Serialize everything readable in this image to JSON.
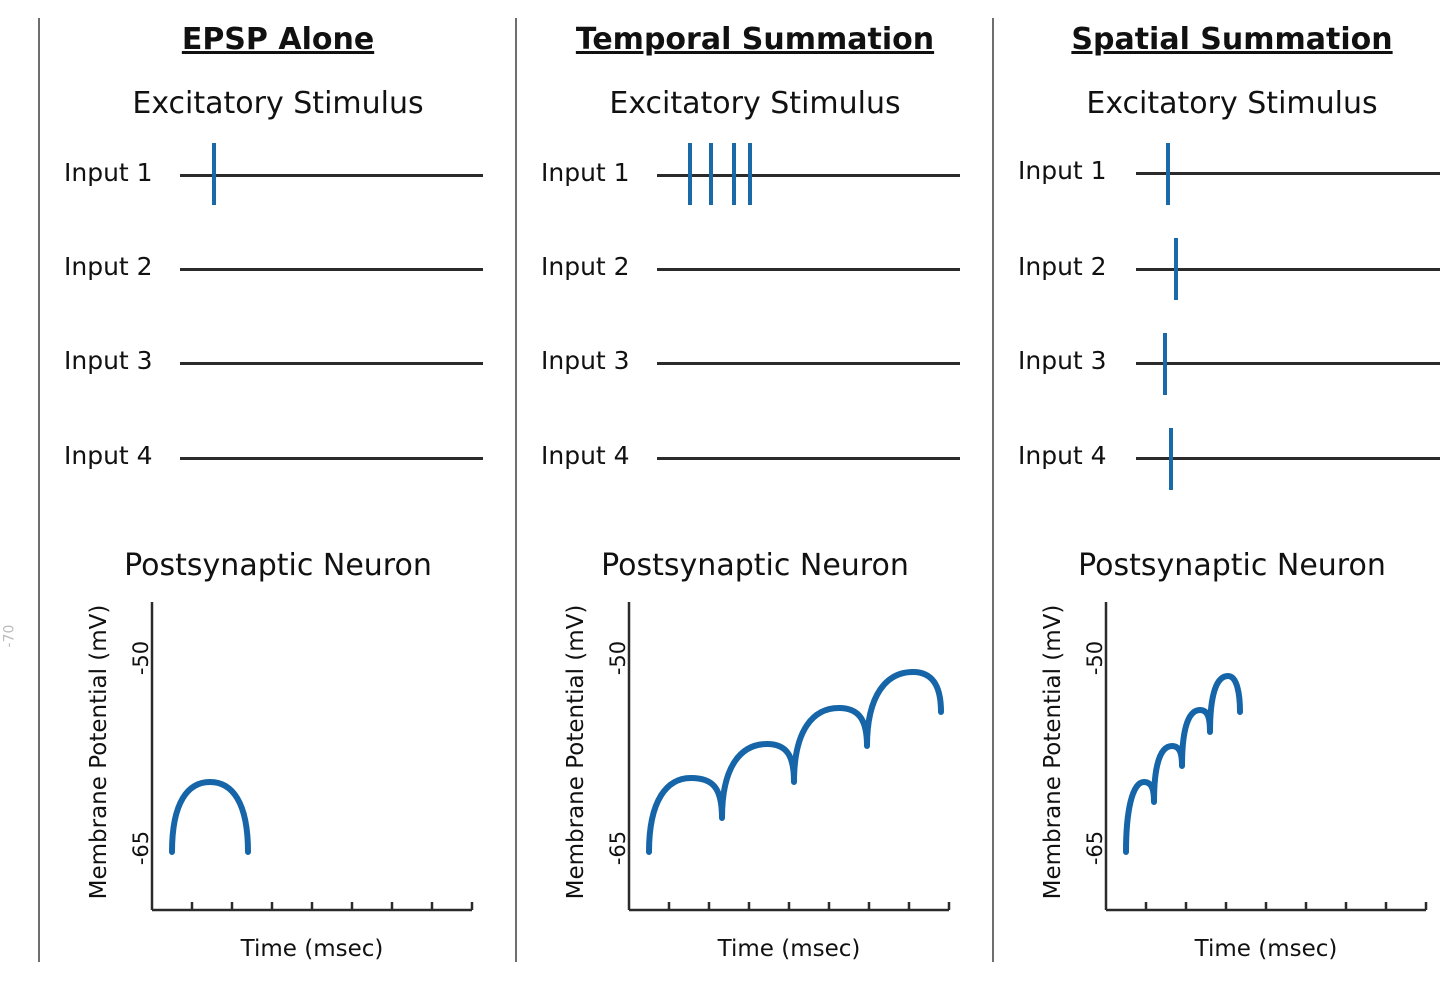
{
  "panels": [
    {
      "title": "EPSP Alone",
      "stimulus_title": "Excitatory Stimulus",
      "inputs": [
        {
          "label": "Input 1",
          "stimulus_count": 1
        },
        {
          "label": "Input 2",
          "stimulus_count": 0
        },
        {
          "label": "Input 3",
          "stimulus_count": 0
        },
        {
          "label": "Input 4",
          "stimulus_count": 0
        }
      ],
      "neuron_title": "Postsynaptic Neuron",
      "y_label": "Membrane Potential (mV)",
      "y_ticks": [
        "-50",
        "-65"
      ],
      "x_label": "Time (msec)"
    },
    {
      "title": "Temporal Summation",
      "stimulus_title": "Excitatory Stimulus",
      "inputs": [
        {
          "label": "Input 1",
          "stimulus_count": 4
        },
        {
          "label": "Input 2",
          "stimulus_count": 0
        },
        {
          "label": "Input 3",
          "stimulus_count": 0
        },
        {
          "label": "Input 4",
          "stimulus_count": 0
        }
      ],
      "neuron_title": "Postsynaptic Neuron",
      "y_label": "Membrane Potential (mV)",
      "y_ticks": [
        "-50",
        "-65"
      ],
      "x_label": "Time (msec)"
    },
    {
      "title": "Spatial Summation",
      "stimulus_title": "Excitatory Stimulus",
      "inputs": [
        {
          "label": "Input 1",
          "stimulus_count": 1
        },
        {
          "label": "Input 2",
          "stimulus_count": 1
        },
        {
          "label": "Input 3",
          "stimulus_count": 1
        },
        {
          "label": "Input 4",
          "stimulus_count": 1
        }
      ],
      "neuron_title": "Postsynaptic Neuron",
      "y_label": "Membrane Potential (mV)",
      "y_ticks": [
        "-50",
        "-65"
      ],
      "x_label": "Time (msec)"
    }
  ],
  "side_mark": "-70",
  "colors": {
    "stimulus": "#1a6aaa",
    "trace": "#1565a8",
    "axis": "#2b2b2b"
  }
}
